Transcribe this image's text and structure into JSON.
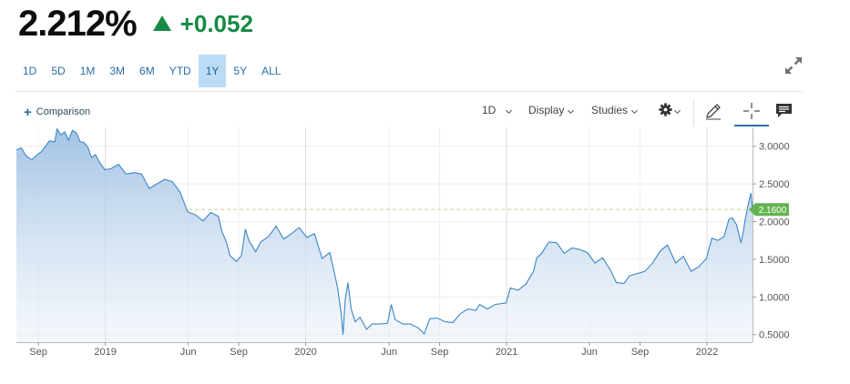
{
  "quote": {
    "price": "2.212%",
    "change": "+0.052",
    "direction_color": "#168a45"
  },
  "ranges": [
    "1D",
    "5D",
    "1M",
    "3M",
    "6M",
    "YTD",
    "1Y",
    "5Y",
    "ALL"
  ],
  "active_range": "1Y",
  "toolbar": {
    "comparison": "Comparison",
    "interval": "1D",
    "display": "Display",
    "studies": "Studies",
    "settings_icon": "gear-icon",
    "draw_icon": "pencil-icon",
    "crosshair_icon": "crosshair-icon",
    "events_icon": "comment-icon",
    "expand_icon": "expand-icon"
  },
  "chart_data": {
    "type": "area",
    "line_color": "#3c86c6",
    "fill_color": "#a8c8e6",
    "x_start": "2018-07-23",
    "x_end": "2022-03-25",
    "x_ticks": [
      {
        "label": "Sep",
        "date": "2018-09-01"
      },
      {
        "label": "2019",
        "date": "2019-01-01"
      },
      {
        "label": "Jun",
        "date": "2019-06-01"
      },
      {
        "label": "Sep",
        "date": "2019-09-01"
      },
      {
        "label": "2020",
        "date": "2020-01-01"
      },
      {
        "label": "Jun",
        "date": "2020-06-01"
      },
      {
        "label": "Sep",
        "date": "2020-09-01"
      },
      {
        "label": "2021",
        "date": "2021-01-01"
      },
      {
        "label": "Jun",
        "date": "2021-06-01"
      },
      {
        "label": "Sep",
        "date": "2021-09-01"
      },
      {
        "label": "2022",
        "date": "2022-01-01"
      }
    ],
    "y_ticks": [
      "3.0000",
      "2.5000",
      "2.0000",
      "1.5000",
      "1.0000",
      "0.5000"
    ],
    "ylim": [
      0.4,
      3.25
    ],
    "grid": true,
    "reference_line": 2.16,
    "last_value_label": "2.1600",
    "points": [
      [
        "2018-07-23",
        2.95
      ],
      [
        "2018-08-01",
        2.98
      ],
      [
        "2018-08-10",
        2.87
      ],
      [
        "2018-08-20",
        2.82
      ],
      [
        "2018-08-29",
        2.88
      ],
      [
        "2018-09-07",
        2.93
      ],
      [
        "2018-09-14",
        3.0
      ],
      [
        "2018-09-21",
        3.07
      ],
      [
        "2018-10-01",
        3.06
      ],
      [
        "2018-10-05",
        3.23
      ],
      [
        "2018-10-12",
        3.15
      ],
      [
        "2018-10-19",
        3.19
      ],
      [
        "2018-10-26",
        3.08
      ],
      [
        "2018-11-02",
        3.21
      ],
      [
        "2018-11-09",
        3.18
      ],
      [
        "2018-11-16",
        3.06
      ],
      [
        "2018-11-23",
        3.05
      ],
      [
        "2018-11-30",
        2.99
      ],
      [
        "2018-12-07",
        2.85
      ],
      [
        "2018-12-14",
        2.89
      ],
      [
        "2018-12-21",
        2.79
      ],
      [
        "2018-12-31",
        2.69
      ],
      [
        "2019-01-11",
        2.7
      ],
      [
        "2019-01-25",
        2.76
      ],
      [
        "2019-02-08",
        2.63
      ],
      [
        "2019-02-22",
        2.65
      ],
      [
        "2019-03-08",
        2.63
      ],
      [
        "2019-03-22",
        2.44
      ],
      [
        "2019-04-05",
        2.5
      ],
      [
        "2019-04-19",
        2.56
      ],
      [
        "2019-05-03",
        2.53
      ],
      [
        "2019-05-17",
        2.39
      ],
      [
        "2019-05-31",
        2.13
      ],
      [
        "2019-06-14",
        2.09
      ],
      [
        "2019-06-28",
        2.01
      ],
      [
        "2019-07-12",
        2.12
      ],
      [
        "2019-07-26",
        2.07
      ],
      [
        "2019-08-02",
        1.85
      ],
      [
        "2019-08-09",
        1.74
      ],
      [
        "2019-08-16",
        1.55
      ],
      [
        "2019-08-28",
        1.47
      ],
      [
        "2019-09-06",
        1.55
      ],
      [
        "2019-09-13",
        1.9
      ],
      [
        "2019-09-20",
        1.74
      ],
      [
        "2019-10-02",
        1.6
      ],
      [
        "2019-10-11",
        1.73
      ],
      [
        "2019-10-25",
        1.8
      ],
      [
        "2019-11-08",
        1.94
      ],
      [
        "2019-11-22",
        1.77
      ],
      [
        "2019-12-06",
        1.84
      ],
      [
        "2019-12-20",
        1.92
      ],
      [
        "2020-01-03",
        1.79
      ],
      [
        "2020-01-17",
        1.84
      ],
      [
        "2020-01-31",
        1.51
      ],
      [
        "2020-02-14",
        1.59
      ],
      [
        "2020-02-28",
        1.13
      ],
      [
        "2020-03-06",
        0.76
      ],
      [
        "2020-03-09",
        0.5
      ],
      [
        "2020-03-13",
        0.96
      ],
      [
        "2020-03-18",
        1.19
      ],
      [
        "2020-03-24",
        0.84
      ],
      [
        "2020-03-31",
        0.67
      ],
      [
        "2020-04-09",
        0.73
      ],
      [
        "2020-04-21",
        0.57
      ],
      [
        "2020-05-01",
        0.64
      ],
      [
        "2020-05-15",
        0.64
      ],
      [
        "2020-05-29",
        0.65
      ],
      [
        "2020-06-05",
        0.9
      ],
      [
        "2020-06-12",
        0.7
      ],
      [
        "2020-06-26",
        0.64
      ],
      [
        "2020-07-10",
        0.64
      ],
      [
        "2020-07-24",
        0.59
      ],
      [
        "2020-08-04",
        0.51
      ],
      [
        "2020-08-14",
        0.71
      ],
      [
        "2020-08-28",
        0.72
      ],
      [
        "2020-09-11",
        0.67
      ],
      [
        "2020-09-25",
        0.66
      ],
      [
        "2020-10-09",
        0.78
      ],
      [
        "2020-10-23",
        0.84
      ],
      [
        "2020-11-06",
        0.82
      ],
      [
        "2020-11-13",
        0.9
      ],
      [
        "2020-11-27",
        0.84
      ],
      [
        "2020-12-11",
        0.9
      ],
      [
        "2020-12-31",
        0.92
      ],
      [
        "2021-01-08",
        1.12
      ],
      [
        "2021-01-22",
        1.09
      ],
      [
        "2021-02-05",
        1.17
      ],
      [
        "2021-02-19",
        1.34
      ],
      [
        "2021-02-25",
        1.52
      ],
      [
        "2021-03-05",
        1.57
      ],
      [
        "2021-03-19",
        1.73
      ],
      [
        "2021-04-02",
        1.72
      ],
      [
        "2021-04-16",
        1.58
      ],
      [
        "2021-04-30",
        1.65
      ],
      [
        "2021-05-14",
        1.63
      ],
      [
        "2021-05-28",
        1.59
      ],
      [
        "2021-06-11",
        1.45
      ],
      [
        "2021-06-25",
        1.52
      ],
      [
        "2021-07-09",
        1.36
      ],
      [
        "2021-07-20",
        1.19
      ],
      [
        "2021-08-03",
        1.18
      ],
      [
        "2021-08-13",
        1.28
      ],
      [
        "2021-08-27",
        1.31
      ],
      [
        "2021-09-10",
        1.34
      ],
      [
        "2021-09-24",
        1.45
      ],
      [
        "2021-10-08",
        1.61
      ],
      [
        "2021-10-21",
        1.69
      ],
      [
        "2021-11-05",
        1.45
      ],
      [
        "2021-11-19",
        1.54
      ],
      [
        "2021-12-03",
        1.34
      ],
      [
        "2021-12-17",
        1.4
      ],
      [
        "2021-12-31",
        1.51
      ],
      [
        "2022-01-10",
        1.78
      ],
      [
        "2022-01-21",
        1.75
      ],
      [
        "2022-02-01",
        1.8
      ],
      [
        "2022-02-10",
        2.03
      ],
      [
        "2022-02-16",
        2.05
      ],
      [
        "2022-02-24",
        1.96
      ],
      [
        "2022-03-04",
        1.72
      ],
      [
        "2022-03-08",
        1.86
      ],
      [
        "2022-03-11",
        2.0
      ],
      [
        "2022-03-16",
        2.19
      ],
      [
        "2022-03-22",
        2.38
      ],
      [
        "2022-03-25",
        2.16
      ]
    ]
  }
}
